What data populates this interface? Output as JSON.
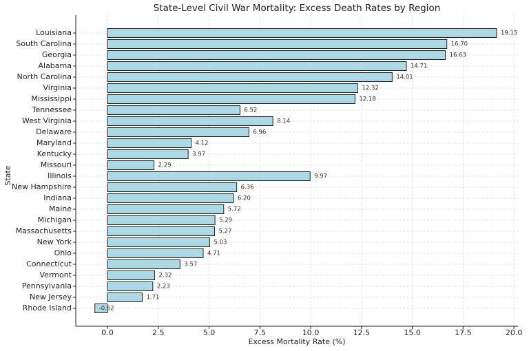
{
  "chart_data": {
    "type": "hbar",
    "title": "State-Level Civil War Mortality: Excess Death Rates by Region",
    "x_label": "Excess Mortality Rate (%)",
    "y_label": "State",
    "categories": [
      "Louisiana",
      "South Carolina",
      "Georgia",
      "Alabama",
      "North Carolina",
      "Virginia",
      "Mississippi",
      "Tennessee",
      "West Virginia",
      "Delaware",
      "Maryland",
      "Kentucky",
      "Missouri",
      "Illinois",
      "New Hampshire",
      "Indiana",
      "Maine",
      "Michigan",
      "Massachusetts",
      "New York",
      "Ohio",
      "Connecticut",
      "Vermont",
      "Pennsylvania",
      "New Jersey",
      "Rhode Island"
    ],
    "values": [
      19.15,
      16.7,
      16.63,
      14.71,
      14.01,
      12.32,
      12.18,
      6.52,
      8.14,
      6.96,
      4.12,
      3.97,
      2.29,
      9.97,
      6.36,
      6.2,
      5.72,
      5.29,
      5.27,
      5.03,
      4.71,
      3.57,
      2.32,
      2.23,
      1.71,
      -0.62
    ],
    "value_labels": [
      "19.15",
      "16.70",
      "16.63",
      "14.71",
      "14.01",
      "12.32",
      "12.18",
      "6.52",
      "8.14",
      "6.96",
      "4.12",
      "3.97",
      "2.29",
      "9.97",
      "6.36",
      "6.20",
      "5.72",
      "5.29",
      "5.27",
      "5.03",
      "4.71",
      "3.57",
      "2.32",
      "2.23",
      "1.71",
      "-0.62"
    ],
    "color": "#add8e6",
    "xlim": [
      -1.56,
      20.2
    ],
    "xticks": [
      {
        "value": 0,
        "label": "0.0"
      },
      {
        "value": 2.5,
        "label": "2.5"
      },
      {
        "value": 5,
        "label": "5.0"
      },
      {
        "value": 7.5,
        "label": "7.5"
      },
      {
        "value": 10,
        "label": "10.0"
      },
      {
        "value": 12.5,
        "label": "12.5"
      },
      {
        "value": 15,
        "label": "15.0"
      },
      {
        "value": 17.5,
        "label": "17.5"
      },
      {
        "value": 20,
        "label": "20.0"
      }
    ],
    "grid": true
  }
}
